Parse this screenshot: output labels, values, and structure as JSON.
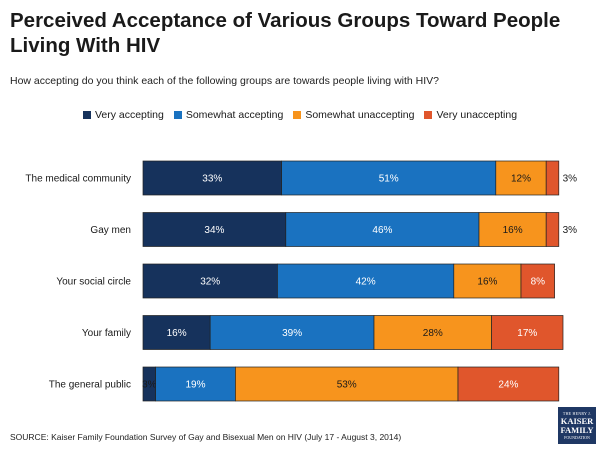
{
  "title": "Perceived Acceptance of Various Groups Toward People Living With HIV",
  "subtitle": "How accepting do you think each of the following groups are towards people living with HIV?",
  "source": "SOURCE: Kaiser Family Foundation Survey of Gay and Bisexual Men on HIV (July 17 - August 3, 2014)",
  "logo": {
    "line1": "THE HENRY J.",
    "line2a": "KAISER",
    "line2b": "FAMILY",
    "line3": "FOUNDATION"
  },
  "chart_data": {
    "type": "bar",
    "orientation": "horizontal-stacked",
    "title": "Perceived Acceptance of Various Groups Toward People Living With HIV",
    "categories": [
      "The medical community",
      "Gay men",
      "Your social circle",
      "Your family",
      "The general public"
    ],
    "series": [
      {
        "name": "Very accepting",
        "color": "#16325c",
        "values": [
          33,
          34,
          32,
          16,
          3
        ]
      },
      {
        "name": "Somewhat accepting",
        "color": "#1a72c0",
        "values": [
          51,
          46,
          42,
          39,
          19
        ]
      },
      {
        "name": "Somewhat unaccepting",
        "color": "#f7941d",
        "values": [
          12,
          16,
          16,
          28,
          53
        ]
      },
      {
        "name": "Very unaccepting",
        "color": "#e0562c",
        "values": [
          3,
          3,
          8,
          17,
          24
        ]
      }
    ],
    "value_suffix": "%",
    "legend_position": "top-center",
    "xlim": [
      0,
      100
    ]
  }
}
